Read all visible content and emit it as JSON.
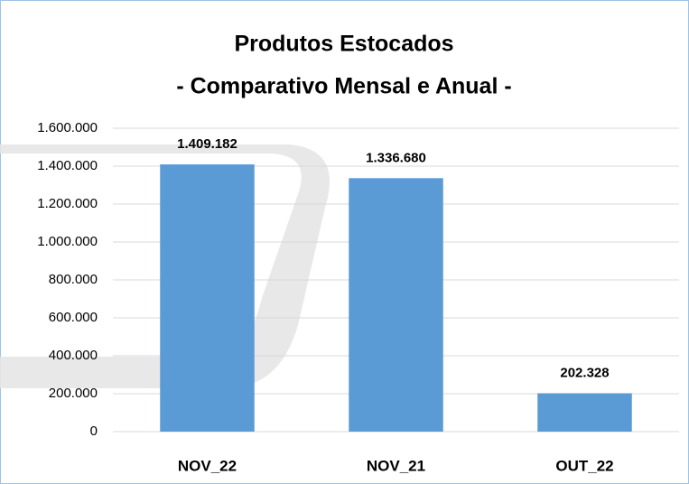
{
  "chart_data": {
    "type": "bar",
    "title": [
      "Produtos Estocados",
      "- Comparativo Mensal e Anual -"
    ],
    "categories": [
      "NOV_22",
      "NOV_21",
      "OUT_22"
    ],
    "values": [
      1409182,
      1336680,
      202328
    ],
    "value_labels": [
      "1.409.182",
      "1.336.680",
      "202.328"
    ],
    "color": "#5b9bd5",
    "ylim": [
      0,
      1600000
    ],
    "yticks": [
      0,
      {
        "value": 200000,
        "label": "200.000"
      },
      {
        "value": 400000,
        "label": "400.000"
      },
      {
        "value": 600000,
        "label": "600.000"
      },
      {
        "value": 800000,
        "label": "800.000"
      },
      {
        "value": 1000000,
        "label": "1.000.000"
      },
      {
        "value": 1200000,
        "label": "1.200.000"
      },
      {
        "value": 1400000,
        "label": "1.400.000"
      },
      {
        "value": 1600000,
        "label": "1.600.000"
      }
    ],
    "grid": true
  }
}
